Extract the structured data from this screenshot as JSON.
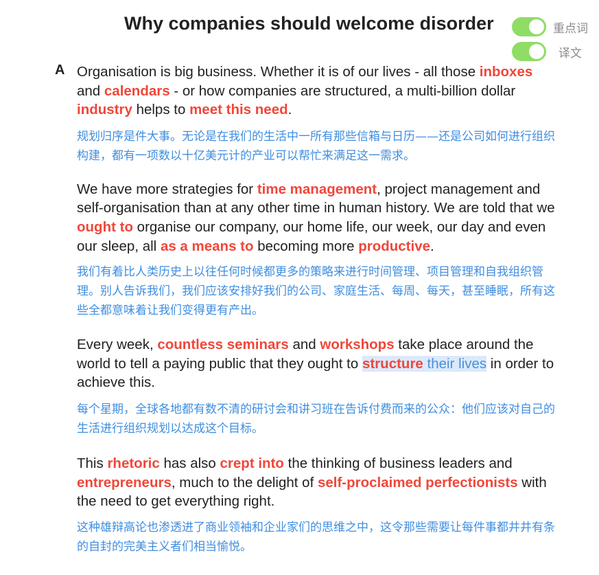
{
  "header": {
    "title": "Why companies should welcome disorder"
  },
  "toggles": [
    {
      "label": "重点词",
      "on": true
    },
    {
      "label": "译文",
      "on": true
    }
  ],
  "colors": {
    "keyword": "#f0473a",
    "translation": "#3f8ee0",
    "toggle_on": "#8fdd64",
    "selection": "#dbe9fb"
  },
  "article": {
    "section_letter": "A",
    "paragraphs": [
      {
        "en": [
          {
            "t": "Organisation is big business. Whether it is of our lives - all those "
          },
          {
            "t": "inboxes",
            "kw": true
          },
          {
            "t": " and "
          },
          {
            "t": "calendars",
            "kw": true
          },
          {
            "t": " - or how companies are structured, a multi-billion dollar "
          },
          {
            "t": "industry",
            "kw": true
          },
          {
            "t": " helps to "
          },
          {
            "t": "meet this need",
            "kw": true
          },
          {
            "t": "."
          }
        ],
        "cn": "规划归序是件大事。无论是在我们的生活中一所有那些信箱与日历——还是公司如何进行组织 构建，都有一项数以十亿美元计的产业可以帮忙来满足这一需求。"
      },
      {
        "en": [
          {
            "t": "We have more strategies for "
          },
          {
            "t": "time management",
            "kw": true
          },
          {
            "t": ", project management and self-organisation than at any other time in human history. We are told that we "
          },
          {
            "t": "ought to",
            "kw": true
          },
          {
            "t": " organise our company, our home life, our week, our day and even our sleep, all "
          },
          {
            "t": "as a means to",
            "kw": true
          },
          {
            "t": " becoming more "
          },
          {
            "t": "productive",
            "kw": true
          },
          {
            "t": "."
          }
        ],
        "cn": "我们有着比人类历史上以往任何时候都更多的策略来进行时间管理、项目管理和自我组织管理。别人告诉我们，我们应该安排好我们的公司、家庭生活、每周、每天，甚至睡眠，所有这些全都意味着让我们变得更有产出。"
      },
      {
        "en": [
          {
            "t": "Every week, "
          },
          {
            "t": "countless seminars",
            "kw": true
          },
          {
            "t": " and "
          },
          {
            "t": "workshops",
            "kw": true
          },
          {
            "t": " take place around the world to tell a paying public that they ought to "
          },
          {
            "t": "structure",
            "kw": true,
            "sel": true
          },
          {
            "t": " their lives",
            "selplain": true
          },
          {
            "t": " in order to achieve this."
          }
        ],
        "cn": "每个星期，全球各地都有数不清的研讨会和讲习班在告诉付费而来的公众：他们应该对自己的生活进行组织规划以达成这个目标。"
      },
      {
        "en": [
          {
            "t": "This "
          },
          {
            "t": "rhetoric",
            "kw": true
          },
          {
            "t": " has also "
          },
          {
            "t": "crept into",
            "kw": true
          },
          {
            "t": " the thinking of business leaders and "
          },
          {
            "t": "entrepreneurs",
            "kw": true
          },
          {
            "t": ", much to the delight of "
          },
          {
            "t": "self-proclaimed perfectionists",
            "kw": true
          },
          {
            "t": " with the need to get everything right."
          }
        ],
        "cn": "这种雄辩高论也渗透进了商业领袖和企业家们的思维之中，这令那些需要让每件事都井井有条的自封的完美主义者们相当愉悦。"
      }
    ]
  }
}
